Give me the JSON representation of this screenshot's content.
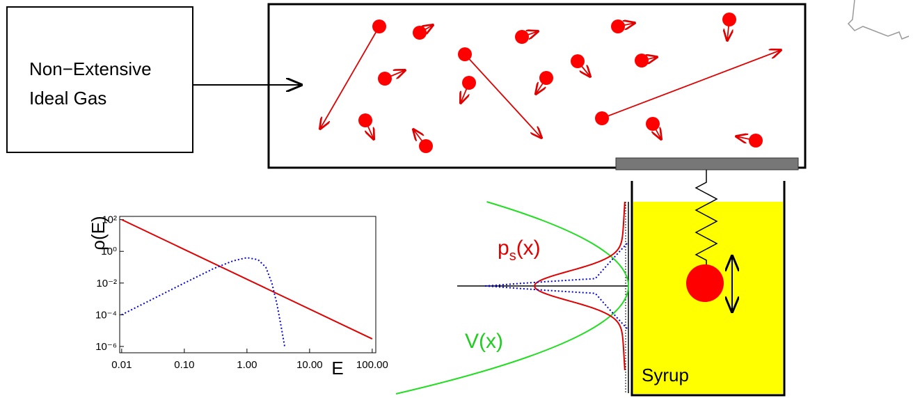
{
  "gas_box": {
    "label_lines": [
      "Non−Extensive",
      "Ideal Gas"
    ]
  },
  "syrup_label": "Syrup",
  "potential_plot": {
    "ps_label": {
      "main": "p",
      "sub": "s",
      "rest": "(x)"
    },
    "v_label": "V(x)"
  },
  "chart_data": {
    "type": "line",
    "ylabel": "ρ(E)",
    "xlabel": "E",
    "log_x": true,
    "log_y": true,
    "xlim": [
      0.0093,
      114
    ],
    "ylim": [
      4e-07,
      160
    ],
    "xticks": [
      {
        "value": 0.01,
        "label": "0.01"
      },
      {
        "value": 0.1,
        "label": "0.10"
      },
      {
        "value": 1,
        "label": "1.00"
      },
      {
        "value": 10,
        "label": "10.00"
      },
      {
        "value": 100,
        "label": "100.00"
      }
    ],
    "yticks": [
      {
        "value": 100,
        "label": "10²"
      },
      {
        "value": 1,
        "label": "10⁰"
      },
      {
        "value": 0.01,
        "label": "10⁻²"
      },
      {
        "value": 0.0001,
        "label": "10⁻⁴"
      },
      {
        "value": 1e-06,
        "label": "10⁻⁶"
      }
    ],
    "series": [
      {
        "color": "#e00000",
        "style": "solid",
        "x": [
          0.01,
          100
        ],
        "values": [
          100,
          3e-06
        ]
      },
      {
        "color": "#0000dd",
        "style": "dotted",
        "x": [
          0.01,
          0.1,
          0.3,
          0.6,
          1,
          1.5,
          2,
          2.5,
          3,
          3.5,
          4
        ],
        "values": [
          0.0001,
          0.01,
          0.085,
          0.25,
          0.4,
          0.3,
          0.1,
          0.01,
          0.0005,
          2e-05,
          1e-06
        ]
      }
    ]
  }
}
